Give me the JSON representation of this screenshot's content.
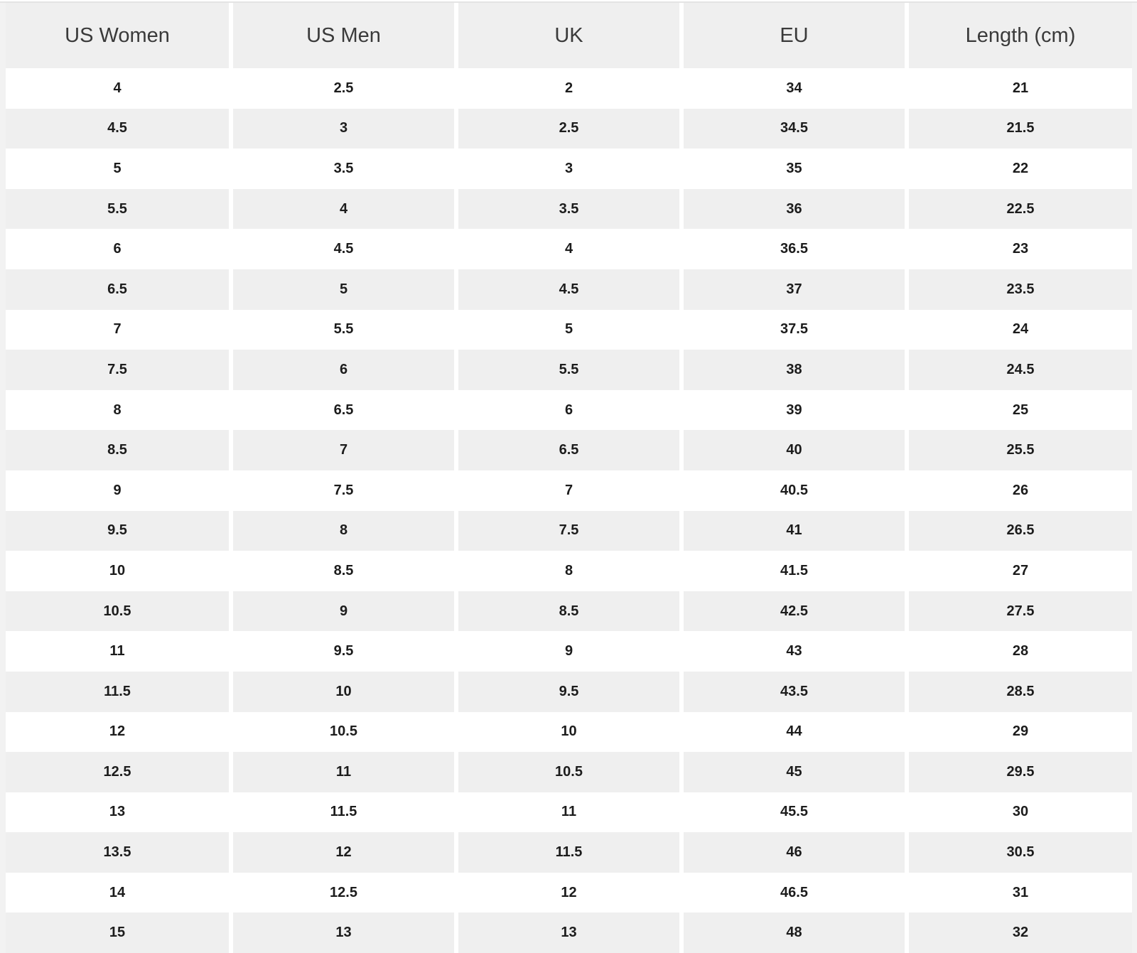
{
  "colors": {
    "page_bg": "#f2f2f2",
    "top_rule": "#e4e4e4",
    "header_bg": "#efefef",
    "stripe_bg": "#efefef",
    "row_bg": "#ffffff",
    "gap": "#ffffff",
    "header_text": "#3a3a3a",
    "cell_text": "#1c1c1c"
  },
  "chart_data": {
    "type": "table",
    "columns": [
      "US Women",
      "US Men",
      "UK",
      "EU",
      "Length (cm)"
    ],
    "rows": [
      [
        "4",
        "2.5",
        "2",
        "34",
        "21"
      ],
      [
        "4.5",
        "3",
        "2.5",
        "34.5",
        "21.5"
      ],
      [
        "5",
        "3.5",
        "3",
        "35",
        "22"
      ],
      [
        "5.5",
        "4",
        "3.5",
        "36",
        "22.5"
      ],
      [
        "6",
        "4.5",
        "4",
        "36.5",
        "23"
      ],
      [
        "6.5",
        "5",
        "4.5",
        "37",
        "23.5"
      ],
      [
        "7",
        "5.5",
        "5",
        "37.5",
        "24"
      ],
      [
        "7.5",
        "6",
        "5.5",
        "38",
        "24.5"
      ],
      [
        "8",
        "6.5",
        "6",
        "39",
        "25"
      ],
      [
        "8.5",
        "7",
        "6.5",
        "40",
        "25.5"
      ],
      [
        "9",
        "7.5",
        "7",
        "40.5",
        "26"
      ],
      [
        "9.5",
        "8",
        "7.5",
        "41",
        "26.5"
      ],
      [
        "10",
        "8.5",
        "8",
        "41.5",
        "27"
      ],
      [
        "10.5",
        "9",
        "8.5",
        "42.5",
        "27.5"
      ],
      [
        "11",
        "9.5",
        "9",
        "43",
        "28"
      ],
      [
        "11.5",
        "10",
        "9.5",
        "43.5",
        "28.5"
      ],
      [
        "12",
        "10.5",
        "10",
        "44",
        "29"
      ],
      [
        "12.5",
        "11",
        "10.5",
        "45",
        "29.5"
      ],
      [
        "13",
        "11.5",
        "11",
        "45.5",
        "30"
      ],
      [
        "13.5",
        "12",
        "11.5",
        "46",
        "30.5"
      ],
      [
        "14",
        "12.5",
        "12",
        "46.5",
        "31"
      ],
      [
        "15",
        "13",
        "13",
        "48",
        "32"
      ]
    ],
    "layout": {
      "header_position": "top",
      "striped": true,
      "first_data_row": "white",
      "column_alignment": "center",
      "grid": "white-gaps-between-columns-only"
    }
  }
}
